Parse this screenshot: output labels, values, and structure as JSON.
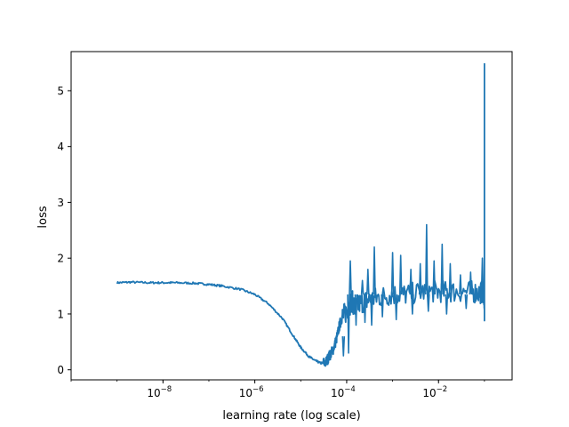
{
  "chart_data": {
    "type": "line",
    "title": "",
    "xlabel": "learning rate (log scale)",
    "ylabel": "loss",
    "x_scale": "log",
    "xlim": [
      1e-10,
      0.4
    ],
    "ylim": [
      -0.18,
      5.7
    ],
    "grid": false,
    "legend": "none",
    "x_ticks": [
      {
        "base": "10",
        "exp": "−8",
        "value": 1e-08
      },
      {
        "base": "10",
        "exp": "−6",
        "value": 1e-06
      },
      {
        "base": "10",
        "exp": "−4",
        "value": 0.0001
      },
      {
        "base": "10",
        "exp": "−2",
        "value": 0.01
      }
    ],
    "y_ticks": [
      "0",
      "1",
      "2",
      "3",
      "4",
      "5"
    ],
    "series": [
      {
        "color": "#1f77b4",
        "points": [
          [
            1e-09,
            1.56
          ],
          [
            2e-09,
            1.57
          ],
          [
            5e-09,
            1.56
          ],
          [
            1e-08,
            1.56
          ],
          [
            2e-08,
            1.56
          ],
          [
            5e-08,
            1.55
          ],
          [
            1e-07,
            1.53
          ],
          [
            2e-07,
            1.5
          ],
          [
            5e-07,
            1.44
          ],
          [
            1e-06,
            1.35
          ],
          [
            2e-06,
            1.18
          ],
          [
            4e-06,
            0.92
          ],
          [
            7e-06,
            0.6
          ],
          [
            1e-05,
            0.4
          ],
          [
            1.5e-05,
            0.24
          ],
          [
            2e-05,
            0.17
          ],
          [
            2.7e-05,
            0.12
          ],
          [
            3.5e-05,
            0.13
          ],
          [
            4.2e-05,
            0.25
          ],
          [
            5e-05,
            0.35
          ],
          [
            6e-05,
            0.55
          ],
          [
            7e-05,
            0.8
          ],
          [
            8e-05,
            0.95
          ],
          [
            0.0001,
            1.05
          ],
          [
            0.00013,
            1.25
          ],
          [
            0.00015,
            1.1
          ],
          [
            0.0002,
            1.2
          ],
          [
            0.0003,
            1.25
          ],
          [
            0.0005,
            1.3
          ],
          [
            0.001,
            1.35
          ],
          [
            0.002,
            1.35
          ],
          [
            0.005,
            1.4
          ],
          [
            0.01,
            1.4
          ],
          [
            0.02,
            1.4
          ],
          [
            0.05,
            1.4
          ],
          [
            0.08,
            1.38
          ],
          [
            0.095,
            1.4
          ],
          [
            0.1,
            1.2
          ],
          [
            0.1,
            5.48
          ],
          [
            0.1,
            0.88
          ],
          [
            0.1,
            1.2
          ]
        ],
        "spikes": [
          [
            0.00012,
            1.95
          ],
          [
            0.00022,
            1.6
          ],
          [
            0.00029,
            1.8
          ],
          [
            0.0004,
            2.2
          ],
          [
            0.001,
            2.1
          ],
          [
            0.0015,
            2.05
          ],
          [
            0.0025,
            1.8
          ],
          [
            0.004,
            1.9
          ],
          [
            0.0055,
            2.6
          ],
          [
            0.008,
            1.95
          ],
          [
            0.012,
            2.25
          ],
          [
            0.018,
            1.9
          ],
          [
            0.03,
            1.7
          ],
          [
            0.05,
            1.75
          ],
          [
            0.09,
            2.0
          ]
        ],
        "dips": [
          [
            8.5e-05,
            0.25
          ],
          [
            0.00011,
            0.3
          ],
          [
            0.00016,
            0.8
          ],
          [
            0.00025,
            0.85
          ],
          [
            0.00035,
            0.8
          ],
          [
            0.0006,
            0.95
          ],
          [
            0.0012,
            0.9
          ],
          [
            0.0027,
            1.0
          ],
          [
            0.006,
            1.05
          ],
          [
            0.015,
            1.0
          ],
          [
            0.04,
            1.1
          ]
        ]
      }
    ]
  }
}
